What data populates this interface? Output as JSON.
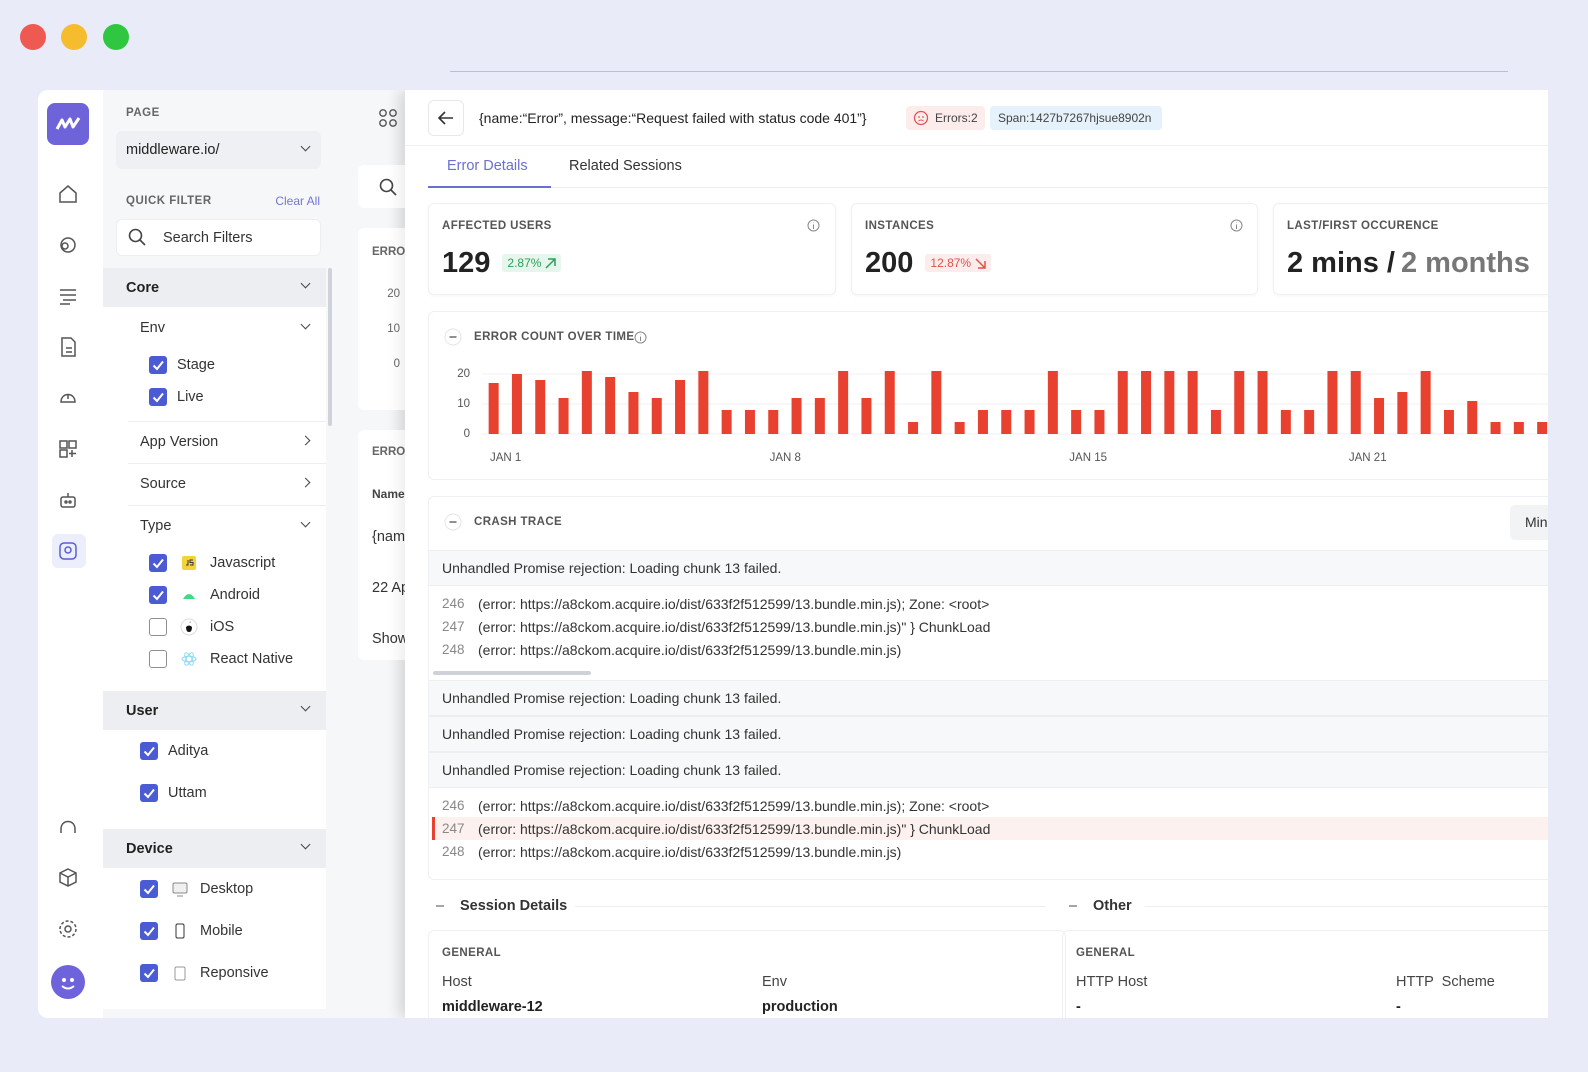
{
  "filters": {
    "page_label": "PAGE",
    "page_value": "middleware.io/",
    "quick_filter": "QUICK FILTER",
    "clear_all": "Clear All",
    "search_placeholder": "Search Filters",
    "groups": [
      {
        "title": "Core",
        "subgroups": [
          {
            "title": "Env",
            "items": [
              {
                "label": "Stage",
                "checked": true
              },
              {
                "label": "Live",
                "checked": true
              }
            ]
          },
          {
            "title": "App Version"
          },
          {
            "title": "Source"
          },
          {
            "title": "Type",
            "items": [
              {
                "label": "Javascript",
                "checked": true
              },
              {
                "label": "Android",
                "checked": true
              },
              {
                "label": "iOS",
                "checked": false
              },
              {
                "label": "React Native",
                "checked": false
              }
            ]
          }
        ]
      },
      {
        "title": "User",
        "items": [
          {
            "label": "Aditya",
            "checked": true
          },
          {
            "label": "Uttam",
            "checked": true
          }
        ]
      },
      {
        "title": "Device",
        "items": [
          {
            "label": "Desktop",
            "checked": true
          },
          {
            "label": "Mobile",
            "checked": true
          },
          {
            "label": "Reponsive",
            "checked": true
          }
        ]
      }
    ]
  },
  "list_panel": {
    "header_1": "ERRO",
    "ticks": [
      20,
      10,
      0
    ],
    "header_2": "ERRO",
    "column": "Name",
    "row_1": "{nam",
    "row_2": "22 Ap",
    "more": "Show"
  },
  "detail": {
    "error_title": "{name:“Error”, message:“Request failed with status code 401”}",
    "errors_badge": "Errors:2",
    "span_badge": "Span:1427b7267hjsue8902n",
    "tabs": [
      "Error Details",
      "Related Sessions"
    ],
    "stats": [
      {
        "label": "AFFECTED USERS",
        "value": 129,
        "change": "2.87%",
        "trend": "up"
      },
      {
        "label": "INSTANCES",
        "value": 200,
        "change": "12.87%",
        "trend": "down"
      },
      {
        "label": "LAST/FIRST OCCURENCE",
        "value": "2 mins /",
        "secondary": "2 months"
      }
    ],
    "crash_trace": {
      "title": "CRASH TRACE",
      "button": "Min",
      "blocks": [
        {
          "message": "Unhandled Promise rejection: Loading chunk 13 failed.",
          "lines": [
            {
              "number": 246,
              "text": "(error: https://a8ckom.acquire.io/dist/633f2f512599/13.bundle.min.js); Zone: <root>"
            },
            {
              "number": 247,
              "text": "(error: https://a8ckom.acquire.io/dist/633f2f512599/13.bundle.min.js)\" } ChunkLoad"
            },
            {
              "number": 248,
              "text": "(error: https://a8ckom.acquire.io/dist/633f2f512599/13.bundle.min.js)"
            }
          ]
        },
        {
          "message": "Unhandled Promise rejection: Loading chunk 13 failed."
        },
        {
          "message": "Unhandled Promise rejection: Loading chunk 13 failed."
        },
        {
          "message": "Unhandled Promise rejection: Loading chunk 13 failed.",
          "lines": [
            {
              "number": 246,
              "text": "(error: https://a8ckom.acquire.io/dist/633f2f512599/13.bundle.min.js); Zone: <root>"
            },
            {
              "number": 247,
              "text": "(error: https://a8ckom.acquire.io/dist/633f2f512599/13.bundle.min.js)\" } ChunkLoad",
              "highlighted": true
            },
            {
              "number": 248,
              "text": "(error: https://a8ckom.acquire.io/dist/633f2f512599/13.bundle.min.js)"
            }
          ]
        }
      ]
    },
    "session": {
      "title": "Session Details",
      "section": "GENERAL",
      "fields": [
        {
          "label": "Host",
          "value": "middleware-12"
        },
        {
          "label": "Env",
          "value": "production"
        }
      ]
    },
    "other": {
      "title": "Other",
      "section": "GENERAL",
      "fields": [
        {
          "label": "HTTP Host",
          "value": "-"
        },
        {
          "label": "HTTP  Scheme",
          "value": "-"
        }
      ]
    }
  },
  "chart_data": {
    "type": "bar",
    "title": "ERROR COUNT OVER TIME",
    "categories": [
      "JAN 1",
      null,
      null,
      null,
      null,
      null,
      null,
      null,
      null,
      null,
      null,
      null,
      "JAN 8",
      null,
      null,
      null,
      null,
      null,
      null,
      null,
      null,
      null,
      null,
      null,
      null,
      "JAN 15",
      null,
      null,
      null,
      null,
      null,
      null,
      null,
      null,
      null,
      null,
      null,
      "JAN 21",
      null,
      null,
      null,
      null,
      null,
      null,
      null,
      null
    ],
    "values": [
      17,
      20,
      18,
      12,
      21,
      19,
      14,
      12,
      18,
      21,
      8,
      8,
      8,
      12,
      12,
      21,
      12,
      21,
      4,
      21,
      4,
      8,
      8,
      8,
      21,
      8,
      8,
      21,
      21,
      21,
      21,
      8,
      21,
      21,
      8,
      8,
      21,
      21,
      12,
      14,
      21,
      8,
      11,
      4,
      4,
      4
    ],
    "color": "#e8412f",
    "ylim": [
      0,
      21
    ],
    "yticks": [
      0,
      10,
      20
    ],
    "grid": true
  }
}
